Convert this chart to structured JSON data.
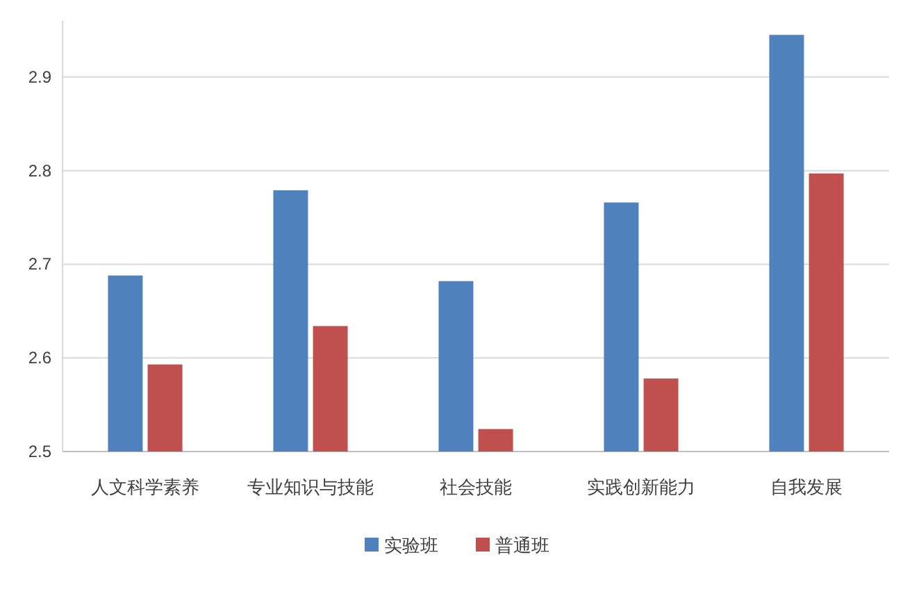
{
  "chart_data": {
    "type": "bar",
    "categories": [
      "人文科学素养",
      "专业知识与技能",
      "社会技能",
      "实践创新能力",
      "自我发展"
    ],
    "series": [
      {
        "name": "实验班",
        "color": "#4f81bd",
        "values": [
          2.688,
          2.779,
          2.682,
          2.766,
          2.945
        ]
      },
      {
        "name": "普通班",
        "color": "#c0504d",
        "values": [
          2.593,
          2.634,
          2.524,
          2.578,
          2.797
        ]
      }
    ],
    "ylim": [
      2.5,
      2.96
    ],
    "yticks": [
      2.5,
      2.6,
      2.7,
      2.8,
      2.9
    ],
    "grid": "y",
    "legend": "bottom"
  }
}
